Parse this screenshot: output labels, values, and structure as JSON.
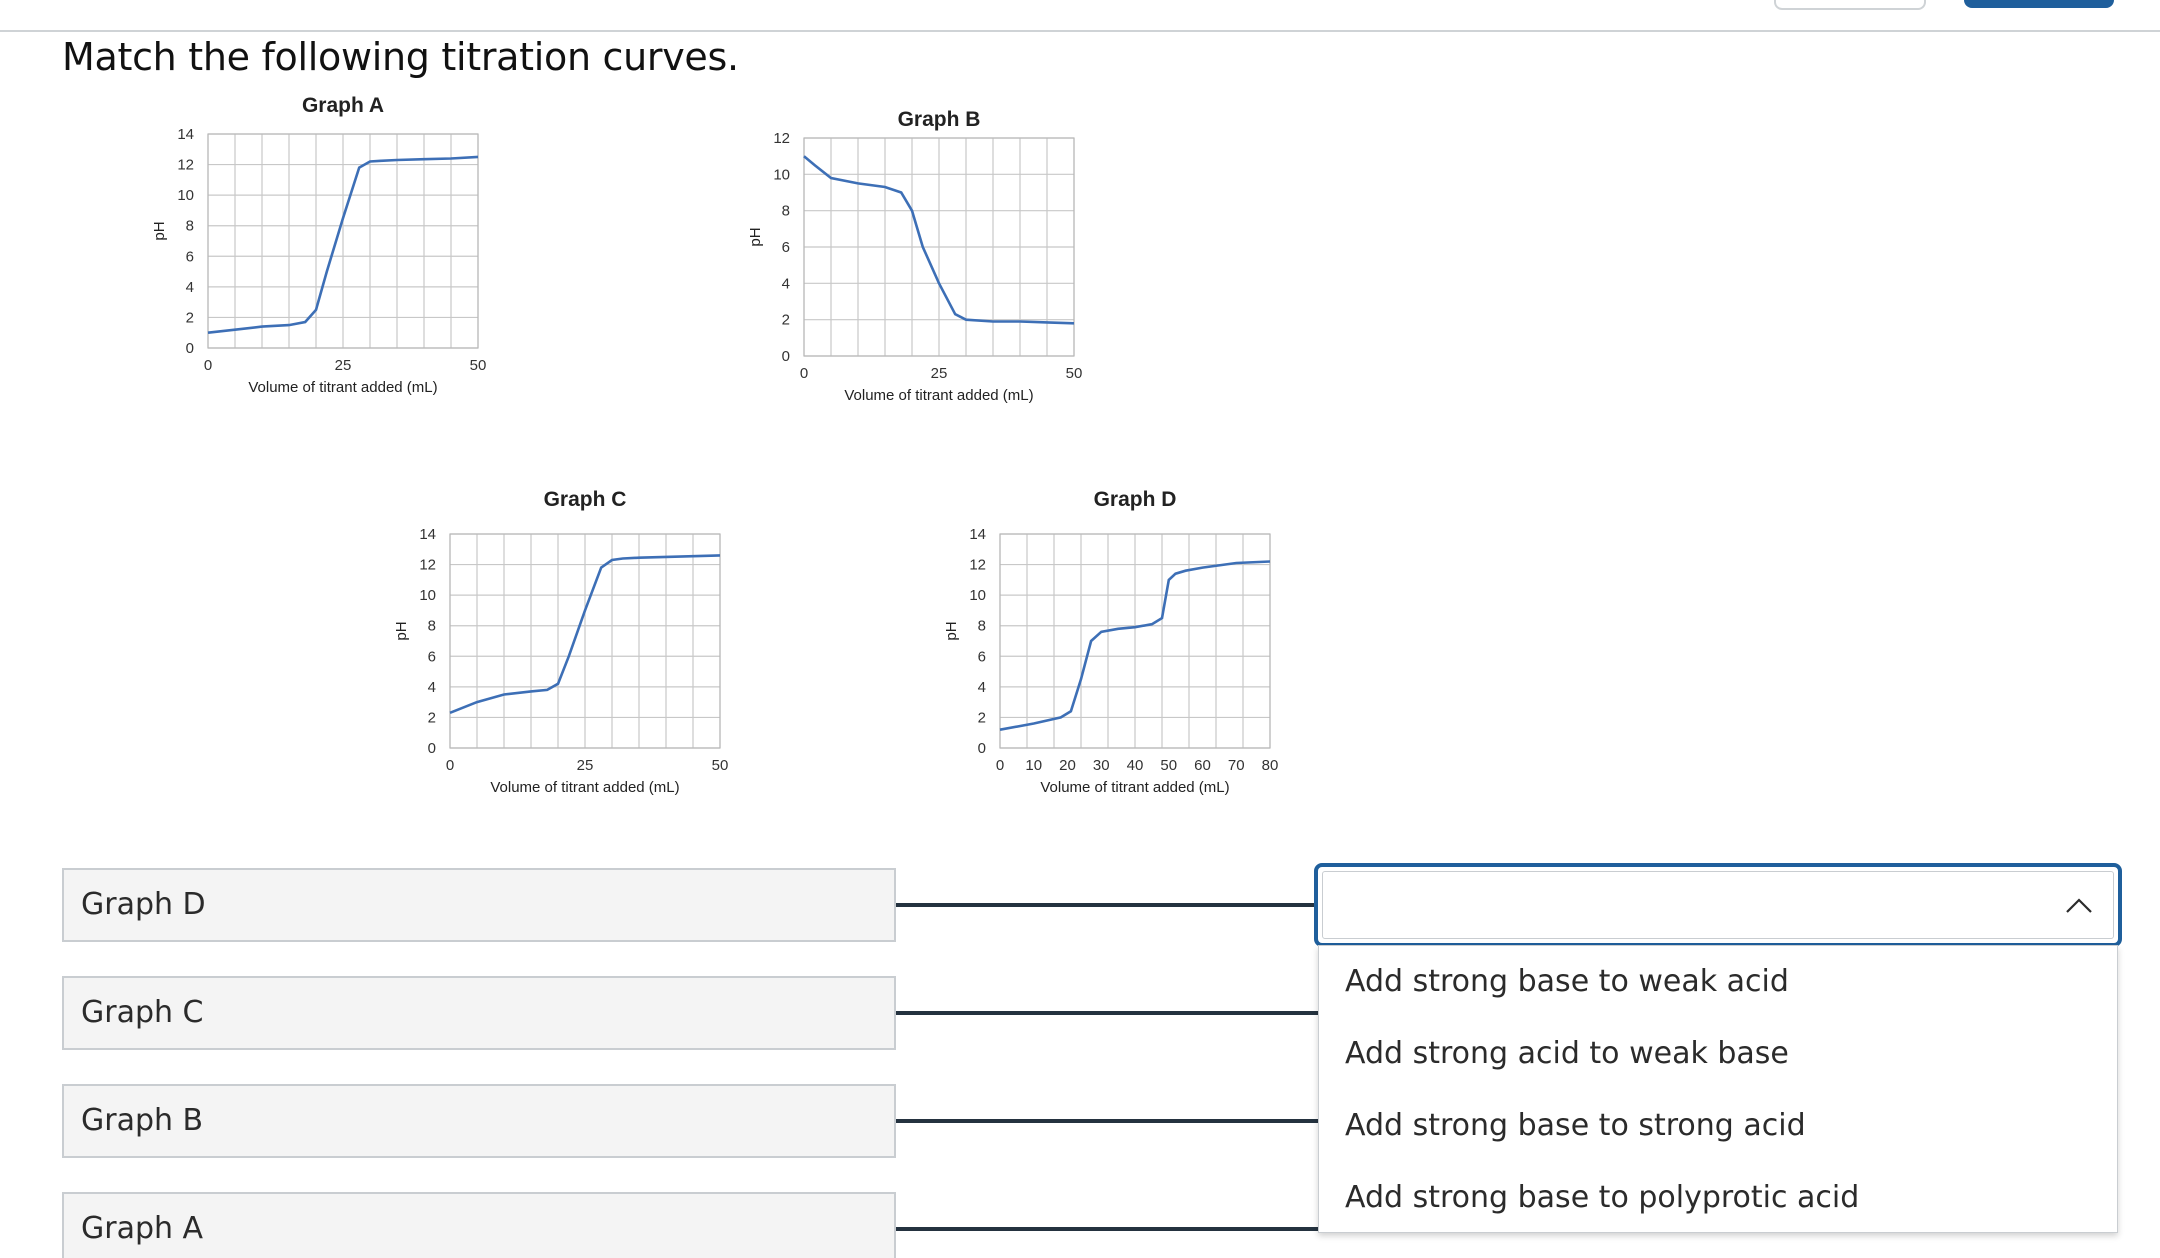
{
  "question": {
    "title": "Match the following titration curves."
  },
  "colors": {
    "accent": "#1f5f9c",
    "curve": "#3d6fb6",
    "connector": "#24323f",
    "prompt_bg": "#f4f4f4"
  },
  "chart_data": [
    {
      "type": "line",
      "title": "Graph A",
      "xlabel": "Volume of titrant added (mL)",
      "ylabel": "pH",
      "xlim": [
        0,
        50
      ],
      "ylim": [
        0,
        14
      ],
      "xticks": [
        0,
        25,
        50
      ],
      "yticks": [
        0,
        2,
        4,
        6,
        8,
        10,
        12,
        14
      ],
      "grid": true,
      "series": [
        {
          "x": [
            0,
            5,
            10,
            15,
            18,
            20,
            22,
            25,
            28,
            30,
            32,
            35,
            40,
            45,
            50
          ],
          "y": [
            1.0,
            1.2,
            1.4,
            1.5,
            1.7,
            2.5,
            5.0,
            8.5,
            11.8,
            12.2,
            12.25,
            12.3,
            12.35,
            12.4,
            12.5
          ]
        }
      ]
    },
    {
      "type": "line",
      "title": "Graph B",
      "xlabel": "Volume of titrant added (mL)",
      "ylabel": "pH",
      "xlim": [
        0,
        50
      ],
      "ylim": [
        0,
        12
      ],
      "xticks": [
        0,
        25,
        50
      ],
      "yticks": [
        0,
        2,
        4,
        6,
        8,
        10,
        12
      ],
      "grid": true,
      "series": [
        {
          "x": [
            0,
            2,
            5,
            10,
            15,
            18,
            20,
            22,
            25,
            28,
            30,
            35,
            40,
            45,
            50
          ],
          "y": [
            11.0,
            10.5,
            9.8,
            9.5,
            9.3,
            9.0,
            8.0,
            6.0,
            4.0,
            2.3,
            2.0,
            1.9,
            1.9,
            1.85,
            1.8
          ]
        }
      ]
    },
    {
      "type": "line",
      "title": "Graph C",
      "xlabel": "Volume of titrant added (mL)",
      "ylabel": "pH",
      "xlim": [
        0,
        50
      ],
      "ylim": [
        0,
        14
      ],
      "xticks": [
        0,
        25,
        50
      ],
      "yticks": [
        0,
        2,
        4,
        6,
        8,
        10,
        12,
        14
      ],
      "grid": true,
      "series": [
        {
          "x": [
            0,
            5,
            10,
            15,
            18,
            20,
            22,
            25,
            28,
            30,
            32,
            35,
            40,
            45,
            50
          ],
          "y": [
            2.3,
            3.0,
            3.5,
            3.7,
            3.8,
            4.2,
            6.0,
            9.0,
            11.8,
            12.3,
            12.4,
            12.45,
            12.5,
            12.55,
            12.6
          ]
        }
      ]
    },
    {
      "type": "line",
      "title": "Graph D",
      "xlabel": "Volume of titrant added (mL)",
      "ylabel": "pH",
      "xlim": [
        0,
        80
      ],
      "ylim": [
        0,
        14
      ],
      "xticks": [
        0,
        10,
        20,
        30,
        40,
        50,
        60,
        70,
        80
      ],
      "yticks": [
        0,
        2,
        4,
        6,
        8,
        10,
        12,
        14
      ],
      "grid": true,
      "series": [
        {
          "x": [
            0,
            10,
            18,
            21,
            24,
            27,
            30,
            35,
            40,
            45,
            48,
            50,
            52,
            55,
            60,
            70,
            80
          ],
          "y": [
            1.2,
            1.6,
            2.0,
            2.4,
            4.5,
            7.0,
            7.6,
            7.8,
            7.9,
            8.1,
            8.5,
            11.0,
            11.4,
            11.6,
            11.8,
            12.1,
            12.2
          ]
        }
      ]
    }
  ],
  "matches": [
    {
      "prompt": "Graph D"
    },
    {
      "prompt": "Graph C"
    },
    {
      "prompt": "Graph B"
    },
    {
      "prompt": "Graph A"
    }
  ],
  "dropdown": {
    "selected": "",
    "options": [
      "Add strong base to weak acid",
      "Add strong acid to weak base",
      "Add strong base to strong acid",
      "Add strong base to polyprotic acid"
    ]
  }
}
